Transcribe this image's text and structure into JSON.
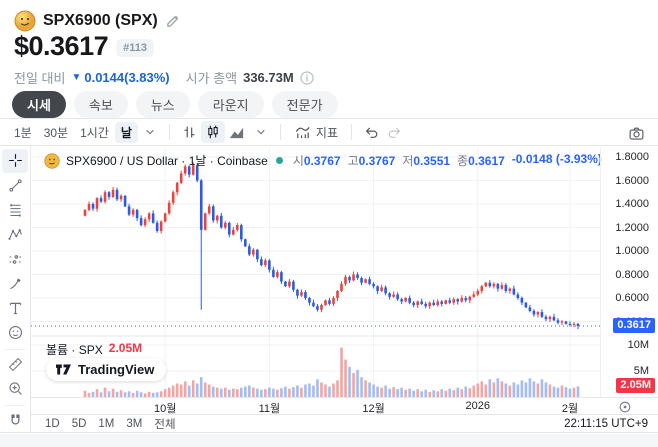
{
  "header": {
    "title": "SPX6900 (SPX)",
    "price": "$0.3617",
    "rank_badge": "#113",
    "change_label": "전일 대비",
    "change_arrow": "▼",
    "change_value": "0.0144(3.83%)",
    "marketcap_label": "시가 총액",
    "marketcap_value": "336.73M"
  },
  "tabs": [
    {
      "label": "시세",
      "active": true
    },
    {
      "label": "속보",
      "active": false
    },
    {
      "label": "뉴스",
      "active": false
    },
    {
      "label": "라운지",
      "active": false
    },
    {
      "label": "전문가",
      "active": false
    }
  ],
  "toolbar": {
    "intervals": [
      "1분",
      "30분",
      "1시간",
      "날"
    ],
    "active_interval": "날",
    "indicator_label": "지표"
  },
  "chart": {
    "legend": {
      "title": "SPX6900 / US Dollar · 1날 · Coinbase",
      "open_label": "시",
      "open": "0.3767",
      "high_label": "고",
      "high": "0.3767",
      "low_label": "저",
      "low": "0.3551",
      "close_label": "종",
      "close": "0.3617",
      "change": "-0.0148 (-3.93%)"
    },
    "price_badge": "0.3617",
    "volume_title": "볼륨 · SPX",
    "volume_value": "2.05M",
    "volume_badge": "2.05M",
    "watermark": "TradingView",
    "range_buttons": [
      "1D",
      "5D",
      "1M",
      "3M",
      "전체"
    ],
    "clock": "22:11:15 UTC+9"
  },
  "chart_data": {
    "type": "candlestick+volume",
    "title": "SPX6900 / US Dollar · 1날 · Coinbase",
    "price_axis_labels": [
      "1.8000",
      "1.6000",
      "1.4000",
      "1.2000",
      "1.0000",
      "0.8000",
      "0.6000",
      "0.4000"
    ],
    "price_tick_values": [
      1.8,
      1.6,
      1.4,
      1.2,
      1.0,
      0.8,
      0.6,
      0.4
    ],
    "ylim_price": [
      0.28,
      1.88
    ],
    "volume_axis_labels": [
      "10M",
      "5M"
    ],
    "volume_tick_values": [
      10,
      5
    ],
    "x_ticks": [
      {
        "label": "10월",
        "index": 20
      },
      {
        "label": "11월",
        "index": 46
      },
      {
        "label": "12월",
        "index": 72
      },
      {
        "label": "2026",
        "index": 98
      },
      {
        "label": "2월",
        "index": 121
      }
    ],
    "open_first": 1.3,
    "closes": [
      1.35,
      1.4,
      1.36,
      1.45,
      1.42,
      1.5,
      1.46,
      1.52,
      1.44,
      1.47,
      1.38,
      1.31,
      1.35,
      1.28,
      1.22,
      1.27,
      1.32,
      1.24,
      1.17,
      1.25,
      1.32,
      1.41,
      1.5,
      1.58,
      1.66,
      1.72,
      1.65,
      1.73,
      1.6,
      1.18,
      1.32,
      1.38,
      1.26,
      1.3,
      1.2,
      1.24,
      1.14,
      1.18,
      1.22,
      1.1,
      1.04,
      0.97,
      1.01,
      0.93,
      0.88,
      0.92,
      0.84,
      0.78,
      0.82,
      0.74,
      0.7,
      0.74,
      0.67,
      0.62,
      0.65,
      0.6,
      0.56,
      0.53,
      0.5,
      0.54,
      0.58,
      0.55,
      0.6,
      0.66,
      0.72,
      0.78,
      0.75,
      0.8,
      0.77,
      0.73,
      0.76,
      0.72,
      0.7,
      0.66,
      0.69,
      0.64,
      0.61,
      0.63,
      0.59,
      0.57,
      0.6,
      0.56,
      0.54,
      0.57,
      0.55,
      0.53,
      0.56,
      0.54,
      0.57,
      0.55,
      0.58,
      0.56,
      0.59,
      0.57,
      0.6,
      0.58,
      0.61,
      0.63,
      0.66,
      0.7,
      0.73,
      0.7,
      0.72,
      0.68,
      0.71,
      0.66,
      0.68,
      0.63,
      0.6,
      0.56,
      0.52,
      0.49,
      0.46,
      0.48,
      0.44,
      0.42,
      0.44,
      0.41,
      0.39,
      0.4,
      0.38,
      0.37,
      0.38,
      0.3617
    ],
    "volumes": [
      1.2,
      0.8,
      1.0,
      1.5,
      0.9,
      1.8,
      1.1,
      1.6,
      1.0,
      1.3,
      0.9,
      1.1,
      0.8,
      1.2,
      0.9,
      0.7,
      1.0,
      0.8,
      0.9,
      1.1,
      1.5,
      1.8,
      2.2,
      2.6,
      2.4,
      3.0,
      2.2,
      3.2,
      2.6,
      3.8,
      2.8,
      2.4,
      2.0,
      1.8,
      1.6,
      1.8,
      1.4,
      1.6,
      1.5,
      1.8,
      2.0,
      2.2,
      1.8,
      1.6,
      1.4,
      1.5,
      1.8,
      1.6,
      1.4,
      1.7,
      2.0,
      1.6,
      1.9,
      2.2,
      1.8,
      2.4,
      2.6,
      2.2,
      3.4,
      2.8,
      2.4,
      2.0,
      2.6,
      3.2,
      9.5,
      7.2,
      5.8,
      4.6,
      5.2,
      3.8,
      3.2,
      2.8,
      2.4,
      2.0,
      1.8,
      2.2,
      1.6,
      1.9,
      1.5,
      1.8,
      1.4,
      1.6,
      1.2,
      1.5,
      1.1,
      1.4,
      1.0,
      1.3,
      1.1,
      1.5,
      1.2,
      1.6,
      1.3,
      1.8,
      1.5,
      2.0,
      1.7,
      2.2,
      2.6,
      3.0,
      2.4,
      3.4,
      2.8,
      3.6,
      3.0,
      2.6,
      2.2,
      2.8,
      2.4,
      3.2,
      2.8,
      3.6,
      3.0,
      2.6,
      3.4,
      2.8,
      2.4,
      2.0,
      1.8,
      2.2,
      1.9,
      1.6,
      1.8,
      2.05
    ],
    "crash_index": 29,
    "crash_low": 0.5,
    "last_price": 0.3617,
    "last_volume": 2.05,
    "colors": {
      "up": "#e8433f",
      "down": "#2b5be0",
      "vol_up": "#f2a5a3",
      "vol_down": "#a3bcf2",
      "grid": "#eef1f6",
      "separator": "#e3e6ea",
      "price_line": "#2962ff",
      "badge_price": "#2962ff",
      "badge_volume": "#f23645"
    }
  }
}
